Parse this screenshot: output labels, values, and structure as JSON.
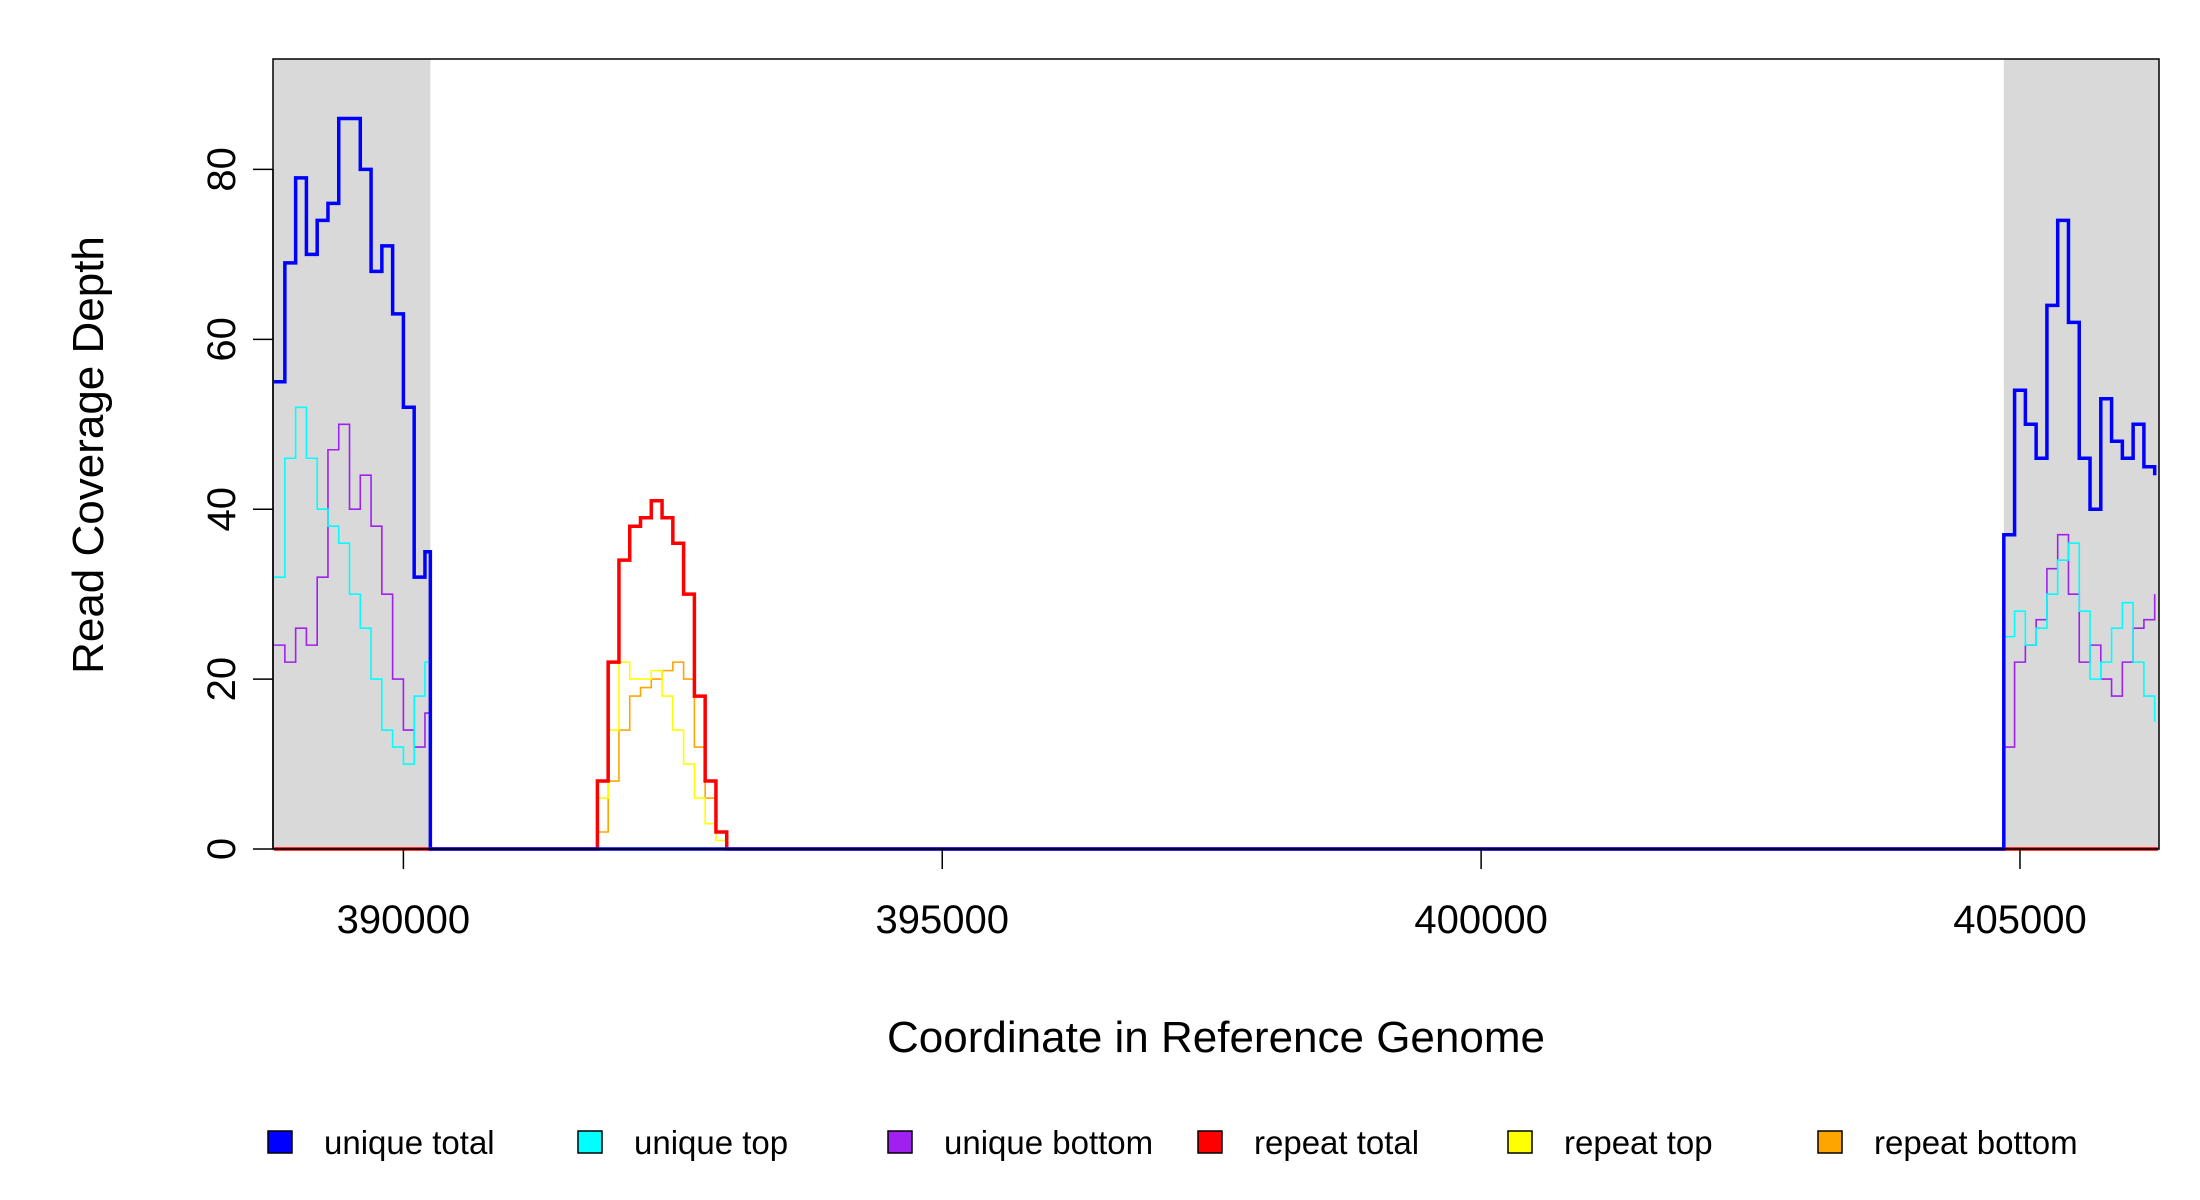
{
  "chart_data": {
    "type": "line",
    "step": true,
    "xlabel": "Coordinate in Reference Genome",
    "ylabel": "Read Coverage Depth",
    "xlim": [
      388790,
      406290
    ],
    "ylim": [
      0,
      93
    ],
    "xticks": [
      390000,
      395000,
      400000,
      405000
    ],
    "yticks": [
      0,
      20,
      40,
      60,
      80
    ],
    "shaded_regions": [
      [
        388790,
        390250
      ],
      [
        404850,
        406290
      ]
    ],
    "shade_color": "#d9d9d9",
    "series": [
      {
        "name": "unique total",
        "color": "#0000ff",
        "x": [
          388800,
          388900,
          389000,
          389100,
          389200,
          389300,
          389400,
          389500,
          389600,
          389700,
          389800,
          389900,
          390000,
          390100,
          390200,
          390250,
          404850,
          404950,
          405050,
          405150,
          405250,
          405350,
          405450,
          405550,
          405650,
          405750,
          405850,
          405950,
          406050,
          406150,
          406250
        ],
        "values": [
          55,
          69,
          79,
          70,
          74,
          76,
          86,
          86,
          80,
          68,
          71,
          63,
          52,
          32,
          35,
          0,
          37,
          54,
          50,
          46,
          64,
          74,
          62,
          46,
          40,
          53,
          48,
          46,
          50,
          45,
          44
        ]
      },
      {
        "name": "unique top",
        "color": "#00ffff",
        "x": [
          388800,
          388900,
          389000,
          389100,
          389200,
          389300,
          389400,
          389500,
          389600,
          389700,
          389800,
          389900,
          390000,
          390100,
          390200,
          390250,
          404850,
          404950,
          405050,
          405150,
          405250,
          405350,
          405450,
          405550,
          405650,
          405750,
          405850,
          405950,
          406050,
          406150,
          406250
        ],
        "values": [
          32,
          46,
          52,
          46,
          40,
          38,
          36,
          30,
          26,
          20,
          14,
          12,
          10,
          18,
          22,
          0,
          25,
          28,
          24,
          26,
          30,
          34,
          36,
          28,
          20,
          22,
          26,
          29,
          22,
          18,
          15
        ]
      },
      {
        "name": "unique bottom",
        "color": "#a020f0",
        "x": [
          388800,
          388900,
          389000,
          389100,
          389200,
          389300,
          389400,
          389500,
          389600,
          389700,
          389800,
          389900,
          390000,
          390100,
          390200,
          390250,
          404850,
          404950,
          405050,
          405150,
          405250,
          405350,
          405450,
          405550,
          405650,
          405750,
          405850,
          405950,
          406050,
          406150,
          406250
        ],
        "values": [
          24,
          22,
          26,
          24,
          32,
          47,
          50,
          40,
          44,
          38,
          30,
          20,
          14,
          12,
          16,
          0,
          12,
          22,
          24,
          27,
          33,
          37,
          30,
          22,
          24,
          20,
          18,
          22,
          26,
          27,
          30
        ]
      },
      {
        "name": "repeat total",
        "color": "#ff0000",
        "x": [
          388800,
          391700,
          391800,
          391900,
          392000,
          392100,
          392200,
          392300,
          392400,
          392500,
          392600,
          392700,
          392800,
          392900,
          393000,
          406280
        ],
        "values": [
          0,
          0,
          8,
          22,
          34,
          38,
          39,
          41,
          39,
          36,
          30,
          18,
          8,
          2,
          0,
          0
        ]
      },
      {
        "name": "repeat top",
        "color": "#ffff00",
        "x": [
          388800,
          391700,
          391800,
          391900,
          392000,
          392100,
          392200,
          392300,
          392400,
          392500,
          392600,
          392700,
          392800,
          392900,
          393000,
          406280
        ],
        "values": [
          0,
          0,
          6,
          14,
          22,
          20,
          20,
          21,
          18,
          14,
          10,
          6,
          3,
          1,
          0,
          0
        ]
      },
      {
        "name": "repeat bottom",
        "color": "#ffa500",
        "x": [
          388800,
          391700,
          391800,
          391900,
          392000,
          392100,
          392200,
          392300,
          392400,
          392500,
          392600,
          392700,
          392800,
          392900,
          393000,
          406280
        ],
        "values": [
          0,
          0,
          2,
          8,
          14,
          18,
          19,
          20,
          21,
          22,
          20,
          12,
          6,
          2,
          0,
          0
        ]
      }
    ]
  }
}
